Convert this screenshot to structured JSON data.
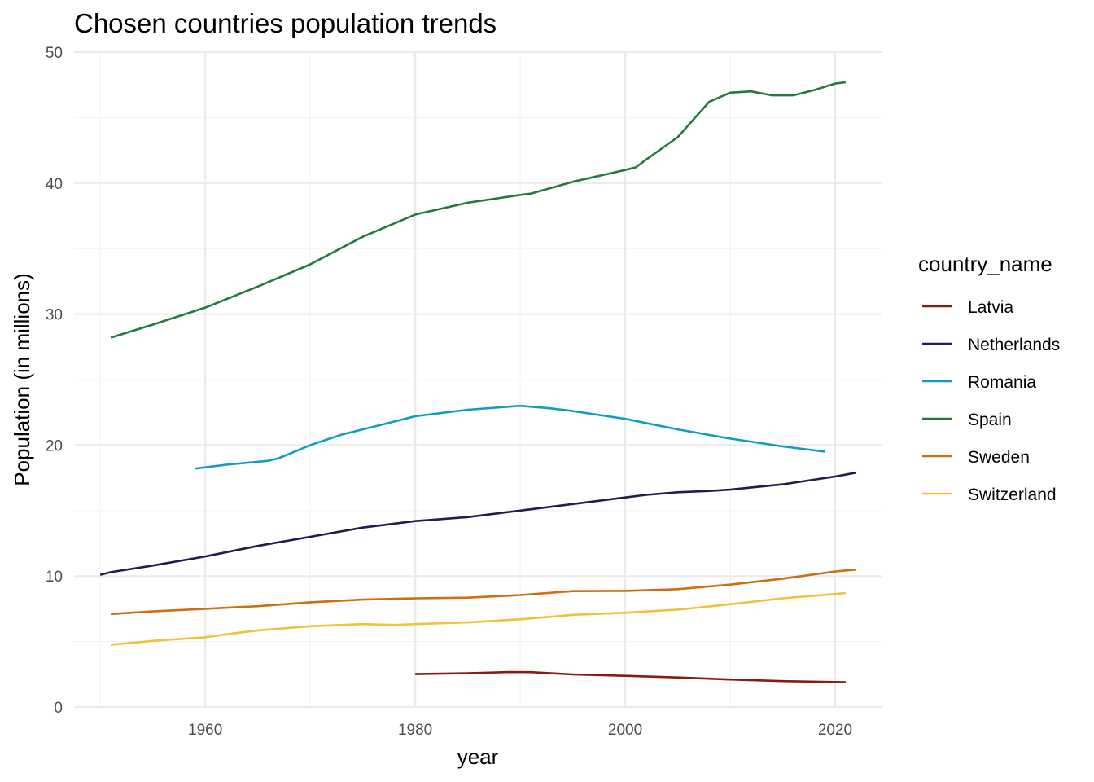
{
  "chart_data": {
    "type": "line",
    "title": "Chosen countries population trends",
    "xlabel": "year",
    "ylabel": "Population (in millions)",
    "xlim": [
      1947.5,
      2024.5
    ],
    "ylim": [
      0,
      50
    ],
    "x_ticks": [
      1960,
      1980,
      2000,
      2020
    ],
    "y_ticks": [
      0,
      10,
      20,
      30,
      40,
      50
    ],
    "grid": true,
    "legend": {
      "title": "country_name",
      "position": "right"
    },
    "series": [
      {
        "name": "Latvia",
        "color": "#8b1a12",
        "points": [
          [
            1980,
            2.51
          ],
          [
            1985,
            2.58
          ],
          [
            1989,
            2.67
          ],
          [
            1991,
            2.66
          ],
          [
            1995,
            2.49
          ],
          [
            2000,
            2.38
          ],
          [
            2005,
            2.26
          ],
          [
            2010,
            2.1
          ],
          [
            2015,
            1.98
          ],
          [
            2021,
            1.89
          ]
        ]
      },
      {
        "name": "Netherlands",
        "color": "#1c1f4f",
        "points": [
          [
            1950,
            10.1
          ],
          [
            1951,
            10.3
          ],
          [
            1955,
            10.8
          ],
          [
            1960,
            11.5
          ],
          [
            1965,
            12.3
          ],
          [
            1970,
            13.0
          ],
          [
            1975,
            13.7
          ],
          [
            1980,
            14.2
          ],
          [
            1985,
            14.5
          ],
          [
            1990,
            15.0
          ],
          [
            1995,
            15.5
          ],
          [
            2000,
            16.0
          ],
          [
            2002,
            16.2
          ],
          [
            2005,
            16.4
          ],
          [
            2008,
            16.5
          ],
          [
            2010,
            16.6
          ],
          [
            2015,
            17.0
          ],
          [
            2020,
            17.6
          ],
          [
            2022,
            17.9
          ]
        ]
      },
      {
        "name": "Romania",
        "color": "#129cc0",
        "points": [
          [
            1959,
            18.2
          ],
          [
            1962,
            18.5
          ],
          [
            1966,
            18.8
          ],
          [
            1967,
            19.0
          ],
          [
            1970,
            20.0
          ],
          [
            1973,
            20.8
          ],
          [
            1977,
            21.6
          ],
          [
            1980,
            22.2
          ],
          [
            1985,
            22.7
          ],
          [
            1990,
            23.0
          ],
          [
            1993,
            22.8
          ],
          [
            1995,
            22.6
          ],
          [
            2000,
            22.0
          ],
          [
            2005,
            21.2
          ],
          [
            2010,
            20.5
          ],
          [
            2015,
            19.9
          ],
          [
            2019,
            19.5
          ]
        ]
      },
      {
        "name": "Spain",
        "color": "#247a3c",
        "points": [
          [
            1951,
            28.2
          ],
          [
            1955,
            29.2
          ],
          [
            1960,
            30.5
          ],
          [
            1965,
            32.1
          ],
          [
            1970,
            33.8
          ],
          [
            1975,
            35.9
          ],
          [
            1980,
            37.6
          ],
          [
            1985,
            38.5
          ],
          [
            1990,
            39.1
          ],
          [
            1991,
            39.2
          ],
          [
            1995,
            40.1
          ],
          [
            2000,
            41.0
          ],
          [
            2001,
            41.2
          ],
          [
            2002,
            41.8
          ],
          [
            2005,
            43.5
          ],
          [
            2008,
            46.2
          ],
          [
            2010,
            46.9
          ],
          [
            2012,
            47.0
          ],
          [
            2014,
            46.7
          ],
          [
            2016,
            46.7
          ],
          [
            2018,
            47.1
          ],
          [
            2020,
            47.6
          ],
          [
            2021,
            47.7
          ]
        ]
      },
      {
        "name": "Sweden",
        "color": "#cc6e12",
        "points": [
          [
            1951,
            7.1
          ],
          [
            1955,
            7.3
          ],
          [
            1960,
            7.5
          ],
          [
            1965,
            7.7
          ],
          [
            1970,
            8.0
          ],
          [
            1975,
            8.2
          ],
          [
            1980,
            8.3
          ],
          [
            1985,
            8.35
          ],
          [
            1990,
            8.55
          ],
          [
            1995,
            8.85
          ],
          [
            2000,
            8.87
          ],
          [
            2005,
            9.0
          ],
          [
            2010,
            9.35
          ],
          [
            2015,
            9.8
          ],
          [
            2020,
            10.35
          ],
          [
            2022,
            10.5
          ]
        ]
      },
      {
        "name": "Switzerland",
        "color": "#f0c23c",
        "points": [
          [
            1951,
            4.75
          ],
          [
            1955,
            5.05
          ],
          [
            1960,
            5.33
          ],
          [
            1963,
            5.65
          ],
          [
            1965,
            5.85
          ],
          [
            1970,
            6.17
          ],
          [
            1975,
            6.33
          ],
          [
            1978,
            6.27
          ],
          [
            1980,
            6.33
          ],
          [
            1985,
            6.46
          ],
          [
            1990,
            6.7
          ],
          [
            1995,
            7.04
          ],
          [
            2000,
            7.2
          ],
          [
            2005,
            7.44
          ],
          [
            2010,
            7.85
          ],
          [
            2015,
            8.3
          ],
          [
            2021,
            8.7
          ]
        ]
      }
    ]
  }
}
